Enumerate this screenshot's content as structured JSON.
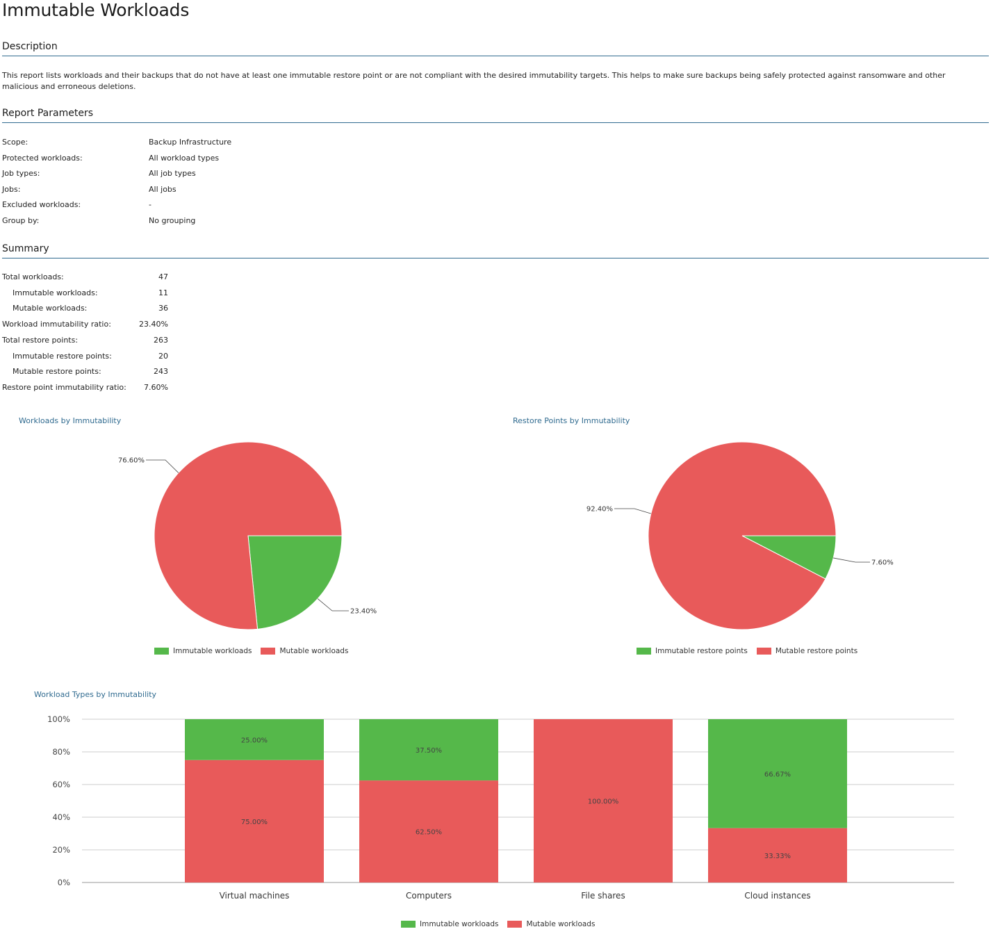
{
  "title": "Immutable Workloads",
  "colors": {
    "immutable": "#55b84a",
    "mutable": "#e85a5a",
    "accent": "#2f6a8f",
    "grid": "#cccccc"
  },
  "description": {
    "heading": "Description",
    "text": "This report lists workloads and their backups that do not have at least one immutable restore point or are not compliant with the desired immutability targets. This helps to make sure backups being safely protected against ransomware and other malicious and erroneous deletions."
  },
  "parameters": {
    "heading": "Report Parameters",
    "rows": [
      {
        "label": "Scope:",
        "value": "Backup Infrastructure"
      },
      {
        "label": "Protected workloads:",
        "value": "All workload types"
      },
      {
        "label": "Job types:",
        "value": "All job types"
      },
      {
        "label": "Jobs:",
        "value": "All jobs"
      },
      {
        "label": "Excluded workloads:",
        "value": "-"
      },
      {
        "label": "Group by:",
        "value": "No grouping"
      }
    ]
  },
  "summary": {
    "heading": "Summary",
    "rows": [
      {
        "label": "Total workloads:",
        "value": "47",
        "indent": false
      },
      {
        "label": "Immutable workloads:",
        "value": "11",
        "indent": true
      },
      {
        "label": "Mutable workloads:",
        "value": "36",
        "indent": true
      },
      {
        "label": "Workload immutability ratio:",
        "value": "23.40%",
        "indent": false
      },
      {
        "label": "Total restore points:",
        "value": "263",
        "indent": false
      },
      {
        "label": "Immutable restore points:",
        "value": "20",
        "indent": true
      },
      {
        "label": "Mutable restore points:",
        "value": "243",
        "indent": true
      },
      {
        "label": "Restore point immutability ratio:",
        "value": "7.60%",
        "indent": false
      }
    ]
  },
  "chart_data": [
    {
      "type": "pie",
      "title": "Workloads by Immutability",
      "slices": [
        {
          "name": "Immutable workloads",
          "value": 23.4,
          "label": "23.40%"
        },
        {
          "name": "Mutable workloads",
          "value": 76.6,
          "label": "76.60%"
        }
      ],
      "legend": [
        "Immutable workloads",
        "Mutable workloads"
      ]
    },
    {
      "type": "pie",
      "title": "Restore Points by Immutability",
      "slices": [
        {
          "name": "Immutable restore points",
          "value": 7.6,
          "label": "7.60%"
        },
        {
          "name": "Mutable restore points",
          "value": 92.4,
          "label": "92.40%"
        }
      ],
      "legend": [
        "Immutable restore points",
        "Mutable restore points"
      ]
    },
    {
      "type": "bar",
      "stacked": true,
      "title": "Workload Types by Immutability",
      "categories": [
        "Virtual machines",
        "Computers",
        "File shares",
        "Cloud instances"
      ],
      "series": [
        {
          "name": "Immutable workloads",
          "values": [
            25.0,
            37.5,
            0,
            66.67
          ],
          "labels": [
            "25.00%",
            "37.50%",
            "",
            "66.67%"
          ]
        },
        {
          "name": "Mutable workloads",
          "values": [
            75.0,
            62.5,
            100.0,
            33.33
          ],
          "labels": [
            "75.00%",
            "62.50%",
            "100.00%",
            "33.33%"
          ]
        }
      ],
      "yticks": [
        "0%",
        "20%",
        "40%",
        "60%",
        "80%",
        "100%"
      ],
      "ylim": [
        0,
        100
      ],
      "grid": true,
      "legend_position": "bottom"
    }
  ]
}
